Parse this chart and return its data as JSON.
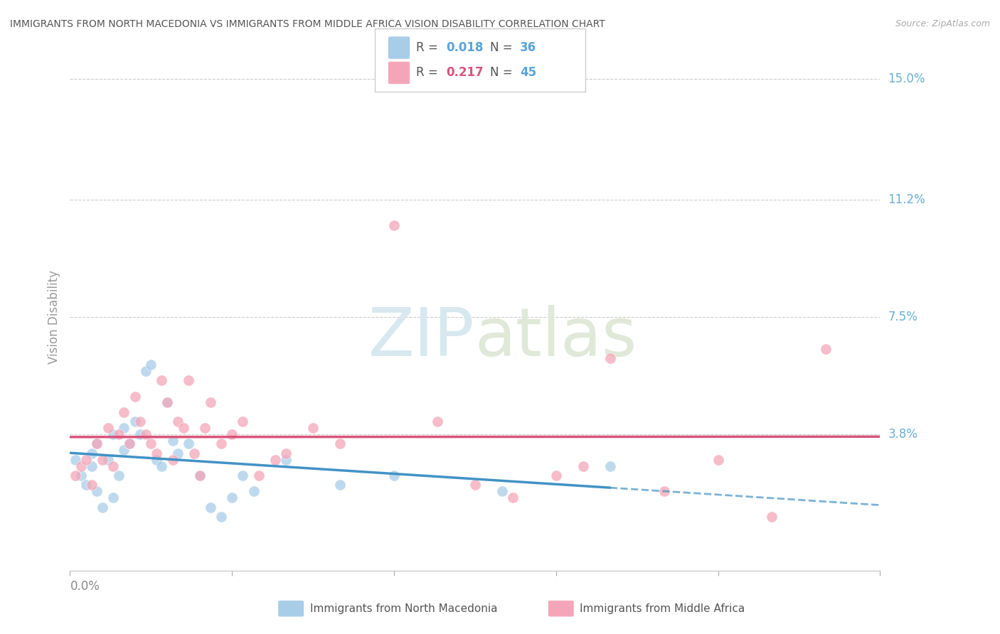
{
  "title": "IMMIGRANTS FROM NORTH MACEDONIA VS IMMIGRANTS FROM MIDDLE AFRICA VISION DISABILITY CORRELATION CHART",
  "source": "Source: ZipAtlas.com",
  "ylabel": "Vision Disability",
  "ytick_vals": [
    0.0,
    0.038,
    0.075,
    0.112,
    0.15
  ],
  "ytick_labels": [
    "",
    "3.8%",
    "7.5%",
    "11.2%",
    "15.0%"
  ],
  "xtick_vals": [
    0.0,
    0.03,
    0.06,
    0.09,
    0.12,
    0.15
  ],
  "xlim": [
    0.0,
    0.15
  ],
  "ylim": [
    -0.005,
    0.155
  ],
  "legend1_label": "Immigrants from North Macedonia",
  "legend2_label": "Immigrants from Middle Africa",
  "R1": 0.018,
  "N1": 36,
  "R2": 0.217,
  "N2": 45,
  "color_blue": "#a8cde8",
  "color_pink": "#f4a6b8",
  "color_blue_line": "#4292c6",
  "color_pink_line": "#d9547a",
  "color_blue_text": "#5ba3d9",
  "color_pink_text": "#d9547a",
  "color_right_labels": "#6baed6",
  "watermark_color": "#eeeeee",
  "blue_x": [
    0.001,
    0.002,
    0.003,
    0.004,
    0.004,
    0.005,
    0.005,
    0.006,
    0.007,
    0.008,
    0.008,
    0.009,
    0.01,
    0.01,
    0.011,
    0.012,
    0.013,
    0.014,
    0.015,
    0.016,
    0.017,
    0.018,
    0.019,
    0.02,
    0.022,
    0.024,
    0.026,
    0.028,
    0.03,
    0.032,
    0.034,
    0.04,
    0.05,
    0.06,
    0.08,
    0.1
  ],
  "blue_y": [
    0.03,
    0.025,
    0.022,
    0.028,
    0.032,
    0.02,
    0.035,
    0.015,
    0.03,
    0.018,
    0.038,
    0.025,
    0.033,
    0.04,
    0.035,
    0.042,
    0.038,
    0.058,
    0.06,
    0.03,
    0.028,
    0.048,
    0.036,
    0.032,
    0.035,
    0.025,
    0.015,
    0.012,
    0.018,
    0.025,
    0.02,
    0.03,
    0.022,
    0.025,
    0.02,
    0.028
  ],
  "pink_x": [
    0.001,
    0.002,
    0.003,
    0.004,
    0.005,
    0.006,
    0.007,
    0.008,
    0.009,
    0.01,
    0.011,
    0.012,
    0.013,
    0.014,
    0.015,
    0.016,
    0.017,
    0.018,
    0.019,
    0.02,
    0.021,
    0.022,
    0.023,
    0.024,
    0.025,
    0.026,
    0.028,
    0.03,
    0.032,
    0.035,
    0.038,
    0.04,
    0.045,
    0.05,
    0.06,
    0.068,
    0.075,
    0.082,
    0.09,
    0.095,
    0.1,
    0.11,
    0.12,
    0.13,
    0.14
  ],
  "pink_y": [
    0.025,
    0.028,
    0.03,
    0.022,
    0.035,
    0.03,
    0.04,
    0.028,
    0.038,
    0.045,
    0.035,
    0.05,
    0.042,
    0.038,
    0.035,
    0.032,
    0.055,
    0.048,
    0.03,
    0.042,
    0.04,
    0.055,
    0.032,
    0.025,
    0.04,
    0.048,
    0.035,
    0.038,
    0.042,
    0.025,
    0.03,
    0.032,
    0.04,
    0.035,
    0.104,
    0.042,
    0.022,
    0.018,
    0.025,
    0.028,
    0.062,
    0.02,
    0.03,
    0.012,
    0.065
  ]
}
